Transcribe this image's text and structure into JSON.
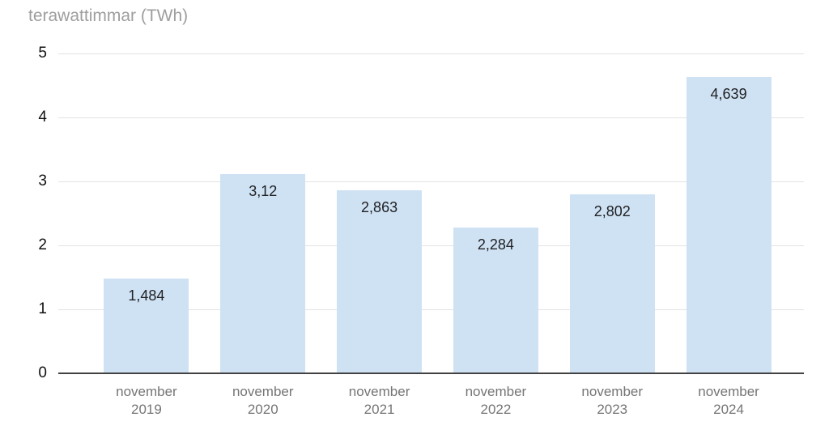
{
  "chart_data": {
    "type": "bar",
    "title": "terawattimmar (TWh)",
    "categories": [
      "november\n2019",
      "november\n2020",
      "november\n2021",
      "november\n2022",
      "november\n2023",
      "november\n2024"
    ],
    "values": [
      1.484,
      3.12,
      2.863,
      2.284,
      2.802,
      4.639
    ],
    "value_labels": [
      "1,484",
      "3,12",
      "2,863",
      "2,284",
      "2,802",
      "4,639"
    ],
    "xlabel": "",
    "ylabel": "terawattimmar (TWh)",
    "ylim": [
      0,
      5
    ],
    "y_ticks": [
      0,
      1,
      2,
      3,
      4,
      5
    ],
    "grid": true,
    "legend": "none",
    "colors": {
      "bar_fill": "#cfe2f3",
      "gridline": "#e3e3e3",
      "axis_line": "#424242",
      "title_text": "#9e9e9e",
      "y_tick_text": "#111111",
      "x_label_text": "#757575",
      "data_label_text": "#202124",
      "background": "#ffffff"
    }
  }
}
